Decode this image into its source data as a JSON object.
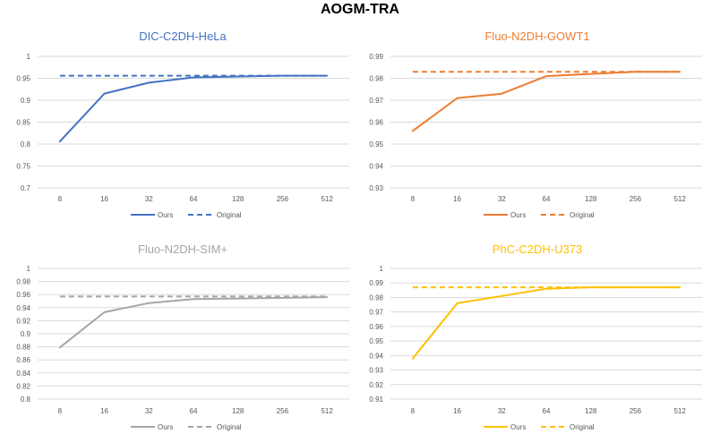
{
  "title": "AOGM-TRA",
  "chart_data": [
    {
      "type": "line",
      "title": "DIC-C2DH-HeLa",
      "color": "#4472C4",
      "categories": [
        "8",
        "16",
        "32",
        "64",
        "128",
        "256",
        "512"
      ],
      "ylim": [
        0.7,
        1
      ],
      "yticks": [
        "0.7",
        "0.75",
        "0.8",
        "0.85",
        "0.9",
        "0.95",
        "1"
      ],
      "grid": true,
      "legend": "bottom",
      "series": [
        {
          "name": "Ours",
          "style": "solid",
          "values": [
            0.806,
            0.915,
            0.94,
            0.952,
            0.954,
            0.956,
            0.956
          ]
        },
        {
          "name": "Original",
          "style": "dashed",
          "values": [
            0.956,
            0.956,
            0.956,
            0.956,
            0.956,
            0.956,
            0.956
          ]
        }
      ]
    },
    {
      "type": "line",
      "title": "Fluo-N2DH-GOWT1",
      "color": "#ED7D31",
      "categories": [
        "8",
        "16",
        "32",
        "64",
        "128",
        "256",
        "512"
      ],
      "ylim": [
        0.93,
        0.99
      ],
      "yticks": [
        "0.93",
        "0.94",
        "0.95",
        "0.96",
        "0.97",
        "0.98",
        "0.99"
      ],
      "grid": true,
      "legend": "bottom",
      "series": [
        {
          "name": "Ours",
          "style": "solid",
          "values": [
            0.956,
            0.971,
            0.973,
            0.981,
            0.982,
            0.983,
            0.983
          ]
        },
        {
          "name": "Original",
          "style": "dashed",
          "values": [
            0.983,
            0.983,
            0.983,
            0.983,
            0.983,
            0.983,
            0.983
          ]
        }
      ]
    },
    {
      "type": "line",
      "title": "Fluo-N2DH-SIM+",
      "color": "#A5A5A5",
      "categories": [
        "8",
        "16",
        "32",
        "64",
        "128",
        "256",
        "512"
      ],
      "ylim": [
        0.8,
        1
      ],
      "yticks": [
        "0.8",
        "0.82",
        "0.84",
        "0.86",
        "0.88",
        "0.9",
        "0.92",
        "0.94",
        "0.96",
        "0.98",
        "1"
      ],
      "grid": true,
      "legend": "bottom",
      "series": [
        {
          "name": "Ours",
          "style": "solid",
          "values": [
            0.879,
            0.933,
            0.947,
            0.953,
            0.954,
            0.955,
            0.956
          ]
        },
        {
          "name": "Original",
          "style": "dashed",
          "values": [
            0.957,
            0.957,
            0.957,
            0.957,
            0.957,
            0.957,
            0.957
          ]
        }
      ]
    },
    {
      "type": "line",
      "title": "PhC-C2DH-U373",
      "color": "#FFC000",
      "categories": [
        "8",
        "16",
        "32",
        "64",
        "128",
        "256",
        "512"
      ],
      "ylim": [
        0.91,
        1
      ],
      "yticks": [
        "0.91",
        "0.92",
        "0.93",
        "0.94",
        "0.95",
        "0.96",
        "0.97",
        "0.98",
        "0.99",
        "1"
      ],
      "grid": true,
      "legend": "bottom",
      "series": [
        {
          "name": "Ours",
          "style": "solid",
          "values": [
            0.938,
            0.976,
            0.981,
            0.986,
            0.987,
            0.987,
            0.987
          ]
        },
        {
          "name": "Original",
          "style": "dashed",
          "values": [
            0.987,
            0.987,
            0.987,
            0.987,
            0.987,
            0.987,
            0.987
          ]
        }
      ]
    }
  ]
}
